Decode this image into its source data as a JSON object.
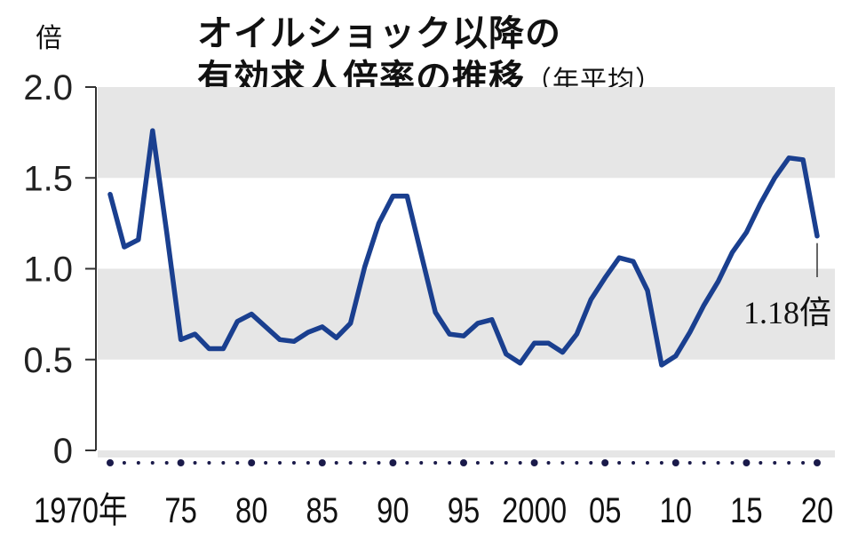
{
  "chart_data": {
    "type": "line",
    "title": [
      "オイルショック以降の",
      "有効求人倍率の推移"
    ],
    "subtitle": "（年平均）",
    "ylabel": "倍",
    "ylim": [
      0,
      2.0
    ],
    "yticks": [
      "0",
      "0.5",
      "1.0",
      "1.5",
      "2.0"
    ],
    "xlim": [
      1970,
      2020
    ],
    "xticks": [
      "1970年",
      "75",
      "80",
      "85",
      "90",
      "95",
      "2000",
      "05",
      "10",
      "15",
      "20"
    ],
    "grid": "alternating gray bands",
    "colors": {
      "line": "#1a3f8f",
      "band": "#e6e6e6"
    },
    "annotation": "1.18倍",
    "series": [
      {
        "x": [
          1970,
          1971,
          1972,
          1973,
          1974,
          1975,
          1976,
          1977,
          1978,
          1979,
          1980,
          1981,
          1982,
          1983,
          1984,
          1985,
          1986,
          1987,
          1988,
          1989,
          1990,
          1991,
          1992,
          1993,
          1994,
          1995,
          1996,
          1997,
          1998,
          1999,
          2000,
          2001,
          2002,
          2003,
          2004,
          2005,
          2006,
          2007,
          2008,
          2009,
          2010,
          2011,
          2012,
          2013,
          2014,
          2015,
          2016,
          2017,
          2018,
          2019,
          2020
        ],
        "values": [
          1.41,
          1.12,
          1.16,
          1.76,
          1.2,
          0.61,
          0.64,
          0.56,
          0.56,
          0.71,
          0.75,
          0.68,
          0.61,
          0.6,
          0.65,
          0.68,
          0.62,
          0.7,
          1.01,
          1.25,
          1.4,
          1.4,
          1.08,
          0.76,
          0.64,
          0.63,
          0.7,
          0.72,
          0.53,
          0.48,
          0.59,
          0.59,
          0.54,
          0.64,
          0.83,
          0.95,
          1.06,
          1.04,
          0.88,
          0.47,
          0.52,
          0.65,
          0.8,
          0.93,
          1.09,
          1.2,
          1.36,
          1.5,
          1.61,
          1.6,
          1.18
        ]
      }
    ]
  }
}
